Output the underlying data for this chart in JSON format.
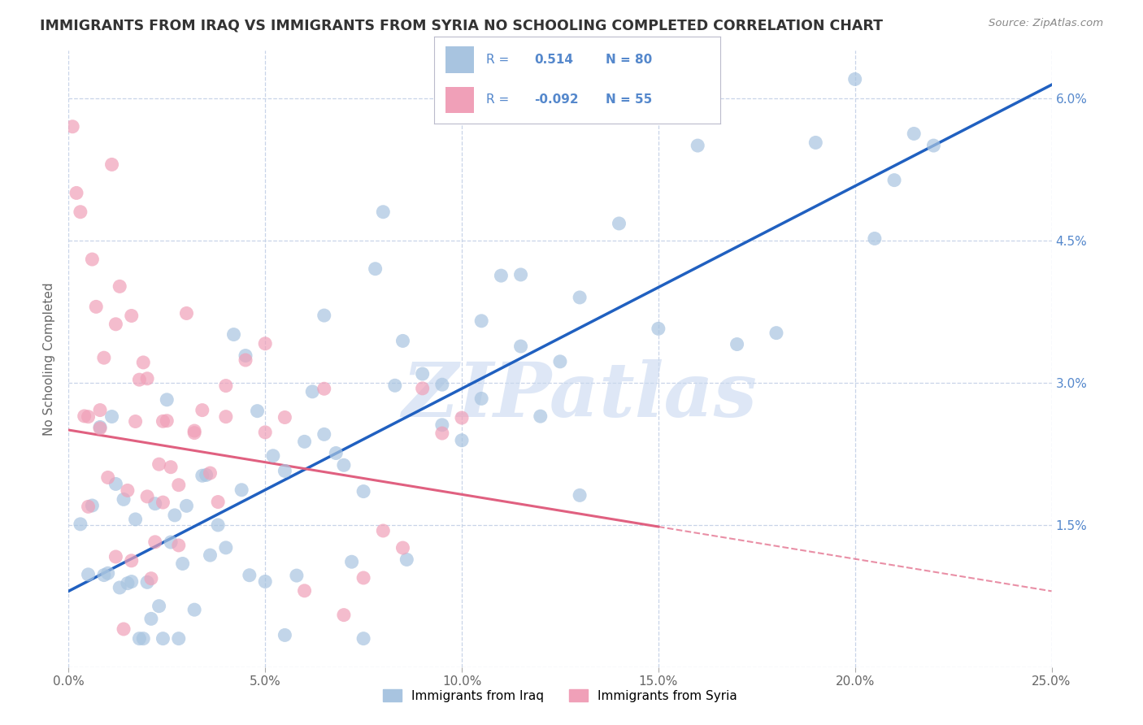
{
  "title": "IMMIGRANTS FROM IRAQ VS IMMIGRANTS FROM SYRIA NO SCHOOLING COMPLETED CORRELATION CHART",
  "source": "Source: ZipAtlas.com",
  "ylabel": "No Schooling Completed",
  "legend_label1": "Immigrants from Iraq",
  "legend_label2": "Immigrants from Syria",
  "R1": 0.514,
  "N1": 80,
  "R2": -0.092,
  "N2": 55,
  "xlim": [
    0.0,
    0.25
  ],
  "ylim": [
    0.0,
    0.065
  ],
  "xticks": [
    0.0,
    0.05,
    0.1,
    0.15,
    0.2,
    0.25
  ],
  "yticks": [
    0.0,
    0.015,
    0.03,
    0.045,
    0.06
  ],
  "xtick_labels": [
    "0.0%",
    "5.0%",
    "10.0%",
    "15.0%",
    "20.0%",
    "25.0%"
  ],
  "ytick_labels_right": [
    "",
    "1.5%",
    "3.0%",
    "4.5%",
    "6.0%"
  ],
  "color_iraq": "#a8c4e0",
  "color_syria": "#f0a0b8",
  "trendline_iraq_color": "#2060c0",
  "trendline_syria_color": "#e06080",
  "background_color": "#ffffff",
  "grid_color": "#c8d4e8",
  "watermark": "ZIPatlas",
  "watermark_color": "#c8d8f0"
}
